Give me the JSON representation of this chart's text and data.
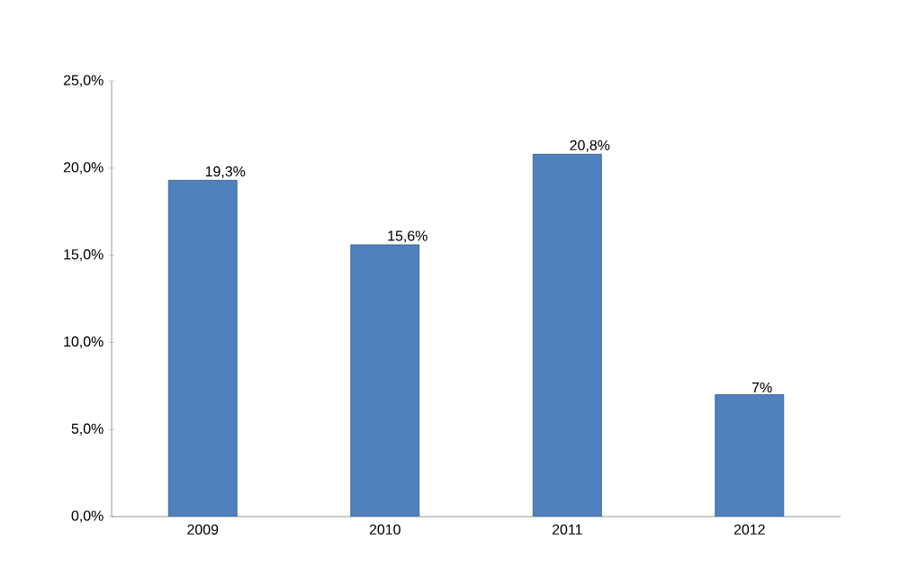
{
  "chart_data": {
    "type": "bar",
    "categories": [
      "2009",
      "2010",
      "2011",
      "2012"
    ],
    "values": [
      19.3,
      15.6,
      20.8,
      7
    ],
    "value_labels": [
      "19,3%",
      "15,6%",
      "20,8%",
      "7%"
    ],
    "color": "#4f81bd",
    "ylim": [
      0,
      25
    ],
    "yticks": [
      {
        "value": 0,
        "label": "0,0%"
      },
      {
        "value": 5,
        "label": "5,0%"
      },
      {
        "value": 10,
        "label": "10,0%"
      },
      {
        "value": 15,
        "label": "15,0%"
      },
      {
        "value": 20,
        "label": "20,0%"
      },
      {
        "value": 25,
        "label": "25,0%"
      }
    ],
    "grid": false
  }
}
